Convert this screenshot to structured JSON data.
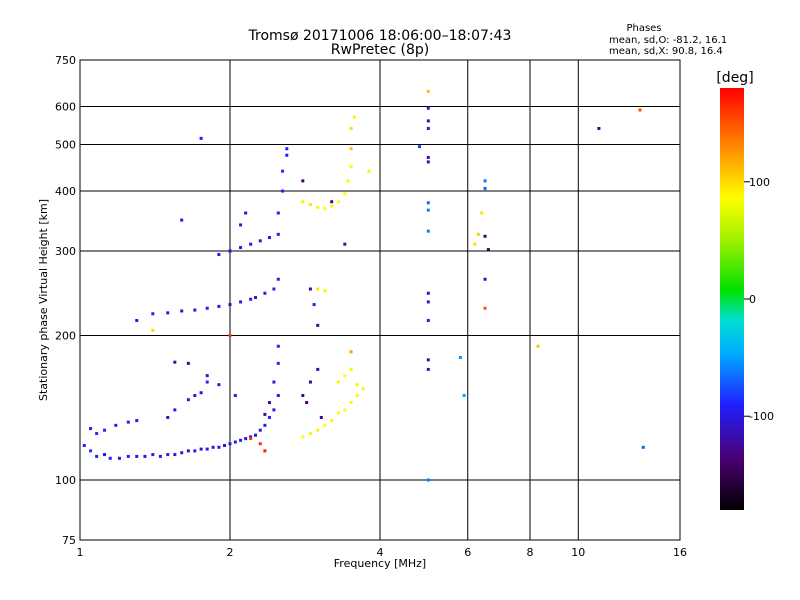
{
  "chart_data": {
    "type": "scatter",
    "title": "Tromsø 20171006 18:06:00–18:07:43",
    "subtitle": "RwPretec (8p)",
    "stats": {
      "heading": "Phases",
      "line1": "mean, sd,O: -81.2, 16.1",
      "line2": "mean, sd,X:  90.8, 16.4"
    },
    "xlabel": "Frequency [MHz]",
    "ylabel": "Stationary phase Virtual Height [km]",
    "xscale": "log",
    "yscale": "log",
    "xlim": [
      1,
      16
    ],
    "ylim": [
      75,
      750
    ],
    "xticks": [
      1,
      2,
      4,
      6,
      8,
      10,
      16
    ],
    "xtick_labels": [
      "1",
      "2",
      "4",
      "6",
      "8",
      "10",
      "16"
    ],
    "yticks": [
      75,
      100,
      200,
      300,
      400,
      500,
      600,
      750
    ],
    "ytick_labels": [
      "75",
      "100",
      "200",
      "300",
      "400",
      "500",
      "600",
      "750"
    ],
    "grid": true,
    "colorbar": {
      "label": "[deg]",
      "range": [
        -180,
        180
      ],
      "ticks": [
        100,
        0,
        -100
      ],
      "tick_labels": [
        "100",
        "0",
        "-100"
      ]
    },
    "series": [
      {
        "points": [
          [
            1.02,
            118,
            -90
          ],
          [
            1.05,
            115,
            -85
          ],
          [
            1.08,
            112,
            -95
          ],
          [
            1.12,
            113,
            -100
          ],
          [
            1.15,
            111,
            -92
          ],
          [
            1.2,
            111,
            -98
          ],
          [
            1.25,
            112,
            -95
          ],
          [
            1.3,
            112,
            -100
          ],
          [
            1.35,
            112,
            -97
          ],
          [
            1.4,
            113,
            -95
          ],
          [
            1.45,
            112,
            -100
          ],
          [
            1.5,
            113,
            -105
          ],
          [
            1.55,
            113,
            -98
          ],
          [
            1.6,
            114,
            -100
          ],
          [
            1.65,
            115,
            -110
          ],
          [
            1.7,
            115,
            -95
          ],
          [
            1.75,
            116,
            -105
          ],
          [
            1.8,
            116,
            -100
          ],
          [
            1.85,
            117,
            -95
          ],
          [
            1.9,
            117,
            -100
          ],
          [
            1.95,
            118,
            -105
          ],
          [
            2.0,
            119,
            -100
          ],
          [
            2.05,
            120,
            -95
          ],
          [
            2.1,
            121,
            -90
          ],
          [
            2.15,
            122,
            -100
          ],
          [
            2.2,
            123,
            -105
          ],
          [
            2.25,
            124,
            -110
          ],
          [
            2.3,
            127,
            -100
          ],
          [
            2.35,
            130,
            -95
          ],
          [
            2.4,
            135,
            -90
          ],
          [
            2.45,
            140,
            -95
          ],
          [
            2.5,
            150,
            -100
          ],
          [
            2.4,
            145,
            -130
          ],
          [
            2.35,
            137,
            -120
          ],
          [
            2.45,
            160,
            -95
          ],
          [
            2.5,
            175,
            -85
          ],
          [
            2.5,
            190,
            -90
          ],
          [
            1.05,
            128,
            -90
          ],
          [
            1.08,
            125,
            -85
          ],
          [
            1.12,
            127,
            -88
          ],
          [
            1.18,
            130,
            -95
          ],
          [
            1.25,
            132,
            -90
          ],
          [
            1.3,
            133,
            -100
          ],
          [
            1.5,
            135,
            -110
          ],
          [
            1.55,
            140,
            -95
          ],
          [
            1.65,
            147,
            -100
          ],
          [
            1.7,
            150,
            -95
          ],
          [
            1.75,
            152,
            -100
          ],
          [
            1.8,
            160,
            -90
          ],
          [
            1.9,
            158,
            -100
          ],
          [
            1.55,
            176,
            -120
          ],
          [
            1.65,
            175,
            -125
          ],
          [
            1.8,
            165,
            -110
          ],
          [
            2.05,
            150,
            -95
          ],
          [
            1.3,
            215,
            -100
          ],
          [
            1.4,
            222,
            -95
          ],
          [
            1.5,
            223,
            -100
          ],
          [
            1.6,
            225,
            -105
          ],
          [
            1.7,
            226,
            -100
          ],
          [
            1.8,
            228,
            -95
          ],
          [
            1.9,
            230,
            -100
          ],
          [
            2.0,
            232,
            -110
          ],
          [
            2.1,
            235,
            -100
          ],
          [
            2.2,
            238,
            -95
          ],
          [
            2.25,
            240,
            -105
          ],
          [
            2.35,
            245,
            -100
          ],
          [
            2.45,
            250,
            -90
          ],
          [
            2.5,
            262,
            -95
          ],
          [
            1.9,
            295,
            -100
          ],
          [
            2.0,
            300,
            -105
          ],
          [
            2.1,
            305,
            -100
          ],
          [
            2.2,
            310,
            -95
          ],
          [
            2.3,
            315,
            -100
          ],
          [
            2.4,
            320,
            -100
          ],
          [
            2.5,
            325,
            -95
          ],
          [
            2.5,
            360,
            -95
          ],
          [
            2.55,
            400,
            -90
          ],
          [
            2.55,
            440,
            -85
          ],
          [
            2.6,
            475,
            -90
          ],
          [
            2.6,
            490,
            -95
          ],
          [
            2.1,
            340,
            -100
          ],
          [
            2.15,
            360,
            -105
          ],
          [
            1.75,
            515,
            -90
          ],
          [
            1.6,
            348,
            -100
          ],
          [
            2.8,
            150,
            -130
          ],
          [
            2.9,
            160,
            -125
          ],
          [
            3.0,
            170,
            -120
          ],
          [
            2.85,
            145,
            -135
          ],
          [
            3.05,
            135,
            -130
          ],
          [
            3.0,
            210,
            -130
          ],
          [
            2.95,
            232,
            -95
          ],
          [
            2.9,
            250,
            -120
          ],
          [
            2.8,
            420,
            -140
          ],
          [
            3.2,
            380,
            -130
          ],
          [
            2.8,
            123,
            85
          ],
          [
            2.9,
            125,
            90
          ],
          [
            3.0,
            127,
            90
          ],
          [
            3.1,
            130,
            85
          ],
          [
            3.2,
            133,
            90
          ],
          [
            3.3,
            138,
            90
          ],
          [
            3.4,
            140,
            85
          ],
          [
            3.5,
            145,
            80
          ],
          [
            3.6,
            150,
            85
          ],
          [
            3.7,
            155,
            80
          ],
          [
            3.3,
            160,
            80
          ],
          [
            3.4,
            165,
            85
          ],
          [
            3.5,
            170,
            80
          ],
          [
            3.6,
            158,
            80
          ],
          [
            2.8,
            380,
            90
          ],
          [
            2.9,
            375,
            95
          ],
          [
            3.0,
            370,
            90
          ],
          [
            3.1,
            368,
            85
          ],
          [
            3.2,
            372,
            90
          ],
          [
            3.3,
            380,
            85
          ],
          [
            3.4,
            395,
            85
          ],
          [
            3.45,
            420,
            80
          ],
          [
            3.5,
            450,
            85
          ],
          [
            3.5,
            490,
            110
          ],
          [
            3.5,
            540,
            100
          ],
          [
            3.55,
            570,
            90
          ],
          [
            3.8,
            440,
            90
          ],
          [
            3.0,
            250,
            95
          ],
          [
            3.1,
            248,
            90
          ],
          [
            3.5,
            185,
            120
          ],
          [
            5.0,
            100,
            -60
          ],
          [
            5.0,
            170,
            -110
          ],
          [
            5.0,
            178,
            -115
          ],
          [
            5.0,
            215,
            -100
          ],
          [
            5.0,
            235,
            -105
          ],
          [
            5.0,
            245,
            -110
          ],
          [
            5.0,
            330,
            -60
          ],
          [
            5.0,
            365,
            -60
          ],
          [
            5.0,
            378,
            -70
          ],
          [
            5.0,
            460,
            -110
          ],
          [
            5.0,
            470,
            -115
          ],
          [
            5.0,
            540,
            -110
          ],
          [
            5.0,
            560,
            -120
          ],
          [
            5.0,
            595,
            -95
          ],
          [
            5.0,
            645,
            110
          ],
          [
            4.8,
            495,
            -80
          ],
          [
            5.8,
            180,
            -50
          ],
          [
            5.9,
            150,
            -50
          ],
          [
            6.2,
            310,
            100
          ],
          [
            6.3,
            325,
            105
          ],
          [
            6.4,
            360,
            95
          ],
          [
            6.5,
            228,
            150
          ],
          [
            6.5,
            262,
            -110
          ],
          [
            6.5,
            322,
            -140
          ],
          [
            6.5,
            405,
            -70
          ],
          [
            6.5,
            420,
            -65
          ],
          [
            6.6,
            302,
            -150
          ],
          [
            8.3,
            190,
            110
          ],
          [
            11.0,
            540,
            -130
          ],
          [
            13.3,
            590,
            150
          ],
          [
            13.5,
            117,
            -70
          ],
          [
            2.0,
            200,
            160
          ],
          [
            2.2,
            122,
            160
          ],
          [
            2.35,
            115,
            170
          ],
          [
            2.3,
            119,
            165
          ],
          [
            1.4,
            205,
            100
          ],
          [
            3.4,
            310,
            -120
          ]
        ]
      }
    ]
  }
}
